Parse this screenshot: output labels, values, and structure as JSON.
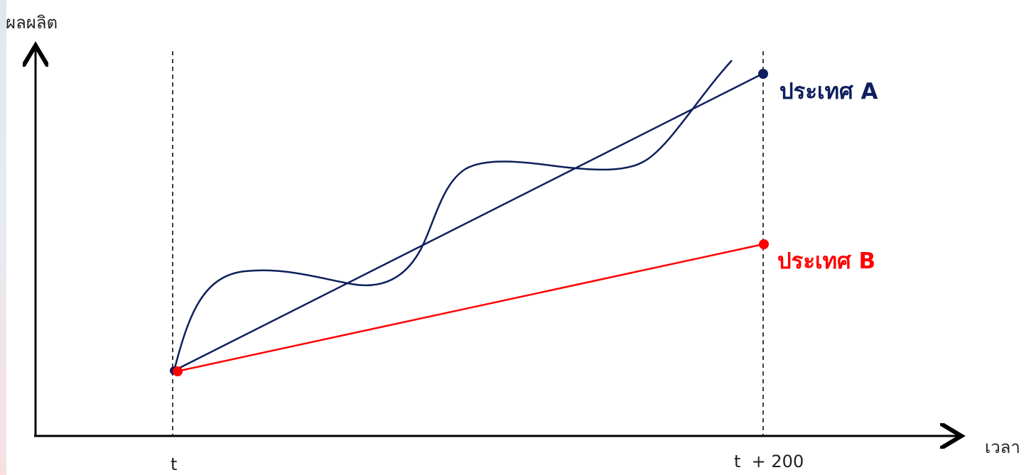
{
  "axes": {
    "y_label": "ผลผลิต",
    "x_label": "เวลา"
  },
  "ticks": {
    "start": "t",
    "end": "t  + 200"
  },
  "series": {
    "a": {
      "label": "ประเทศ A",
      "color": "#0d1f5c"
    },
    "b": {
      "label": "ประเทศ B",
      "color": "#ff0000"
    }
  }
}
